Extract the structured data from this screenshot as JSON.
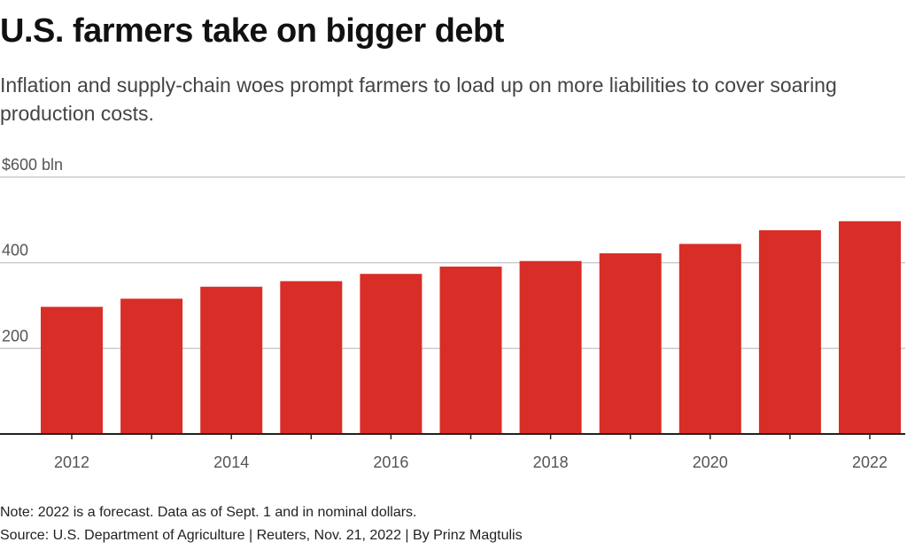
{
  "header": {
    "title": "U.S. farmers take on bigger debt",
    "subtitle": "Inflation and supply-chain woes prompt farmers to load up on more liabilities to cover soaring production costs."
  },
  "footer": {
    "note": "Note: 2022 is a forecast. Data as of Sept. 1 and in nominal dollars.",
    "source": "Source: U.S. Department of Agriculture | Reuters, Nov. 21, 2022 | By Prinz Magtulis"
  },
  "colors": {
    "bar": "#d92d27",
    "grid": "#cccccc",
    "axis": "#222222",
    "tick_text": "#555555"
  },
  "chart_data": {
    "type": "bar",
    "categories": [
      "2012",
      "2013",
      "2014",
      "2015",
      "2016",
      "2017",
      "2018",
      "2019",
      "2020",
      "2021",
      "2022"
    ],
    "values": [
      297,
      316,
      344,
      357,
      374,
      391,
      404,
      422,
      444,
      476,
      497
    ],
    "ylim": [
      0,
      600
    ],
    "y_ticks": [
      200,
      400,
      600
    ],
    "y_tick_labels": [
      "200",
      "400",
      "$600 bln"
    ],
    "x_tick_labels": [
      "2012",
      "",
      "2014",
      "",
      "2016",
      "",
      "2018",
      "",
      "2020",
      "",
      "2022"
    ],
    "grid": true,
    "legend": "none"
  }
}
